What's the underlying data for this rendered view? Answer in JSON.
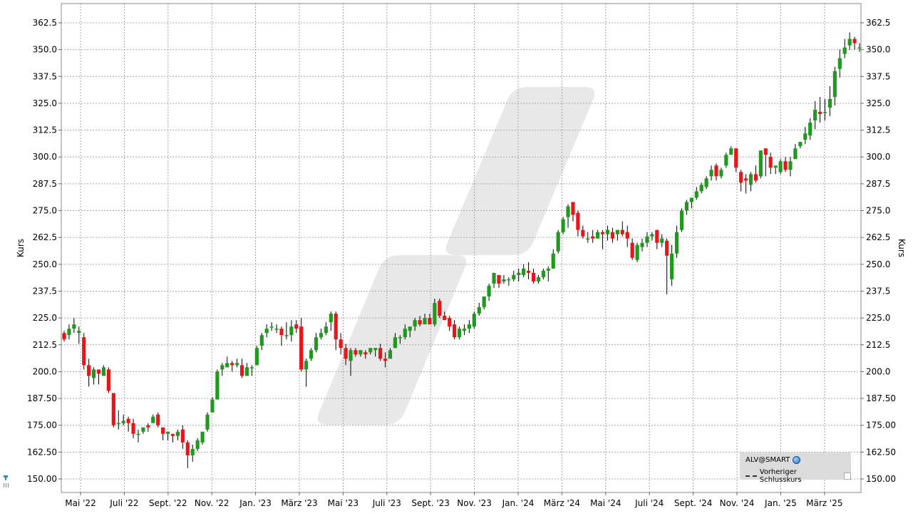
{
  "chart_data": {
    "type": "candlestick",
    "ylabel_left": "Kurs",
    "ylabel_right": "Kurs",
    "ylim": [
      145.0,
      368.0
    ],
    "y_ticks_left": [
      "362.5",
      "350.0",
      "337.5",
      "325.0",
      "312.5",
      "300.0",
      "287.5",
      "275.0",
      "262.5",
      "250.0",
      "237.5",
      "225.0",
      "212.5",
      "200.0",
      "187.50",
      "175.00",
      "162.50",
      "150.00"
    ],
    "y_ticks_right": [
      "362.5",
      "350.0",
      "337.5",
      "325.0",
      "312.5",
      "300.0",
      "287.5",
      "275.0",
      "262.5",
      "250.0",
      "237.5",
      "225.0",
      "212.5",
      "200.0",
      "187.50",
      "175.00",
      "162.50",
      "150.00"
    ],
    "x_ticks": [
      "Mai '22",
      "Juli '22",
      "Sept. '22",
      "Nov. '22",
      "Jan. '23",
      "März '23",
      "Mai '23",
      "Juli '23",
      "Sept. '23",
      "Nov. '23",
      "Jan. '24",
      "März '24",
      "Mai '24",
      "Juli '24",
      "Sept. '24",
      "Nov. '24",
      "Jan. '25",
      "März '25"
    ],
    "grid": true,
    "candles": [
      [
        218,
        215,
        219,
        214
      ],
      [
        217,
        220,
        222,
        215
      ],
      [
        220,
        222,
        225,
        218
      ],
      [
        218,
        219,
        221,
        213
      ],
      [
        216,
        203,
        218,
        201
      ],
      [
        203,
        198,
        206,
        193
      ],
      [
        197,
        201,
        202,
        194
      ],
      [
        201,
        199,
        201,
        194
      ],
      [
        198,
        202,
        203,
        198
      ],
      [
        201,
        191,
        202,
        190
      ],
      [
        190,
        175,
        190,
        174
      ],
      [
        176,
        176,
        182,
        173
      ],
      [
        176,
        177,
        180,
        175
      ],
      [
        178,
        176,
        179,
        172
      ],
      [
        176,
        171,
        178,
        169
      ],
      [
        171,
        171,
        173,
        167
      ],
      [
        172,
        174,
        174,
        171
      ],
      [
        175,
        174,
        176,
        172
      ],
      [
        176,
        179,
        180,
        176
      ],
      [
        180,
        175,
        181,
        174
      ],
      [
        174,
        171,
        174,
        168
      ],
      [
        171,
        172,
        172,
        168
      ],
      [
        171,
        170,
        171,
        167
      ],
      [
        170,
        172,
        173,
        168
      ],
      [
        173,
        167,
        175,
        164
      ],
      [
        167,
        161,
        168,
        155
      ],
      [
        161,
        164,
        166,
        158
      ],
      [
        164,
        168,
        169,
        163
      ],
      [
        167,
        172,
        172,
        166
      ],
      [
        173,
        180,
        181,
        172
      ],
      [
        181,
        187,
        188,
        181
      ],
      [
        187,
        200,
        201,
        187
      ],
      [
        201,
        203,
        204,
        198
      ],
      [
        202,
        204,
        207,
        202
      ],
      [
        204,
        203,
        205,
        200
      ],
      [
        203,
        204,
        206,
        202
      ],
      [
        203,
        198,
        206,
        197
      ],
      [
        198,
        202,
        204,
        198
      ],
      [
        202,
        202,
        203,
        198
      ],
      [
        203,
        211,
        212,
        203
      ],
      [
        212,
        217,
        218,
        210
      ],
      [
        218,
        220,
        222,
        216
      ],
      [
        221,
        221,
        223,
        219
      ],
      [
        220,
        220,
        222,
        218
      ],
      [
        220,
        217,
        221,
        212
      ],
      [
        217,
        217,
        223,
        215
      ],
      [
        217,
        221,
        224,
        214
      ],
      [
        222,
        220,
        224,
        218
      ],
      [
        221,
        201,
        225,
        200
      ],
      [
        201,
        205,
        206,
        193
      ],
      [
        206,
        210,
        211,
        205
      ],
      [
        210,
        216,
        218,
        209
      ],
      [
        216,
        218,
        220,
        215
      ],
      [
        218,
        221,
        223,
        217
      ],
      [
        223,
        227,
        228,
        219
      ],
      [
        227,
        215,
        228,
        210
      ],
      [
        215,
        211,
        218,
        208
      ],
      [
        211,
        206,
        213,
        203
      ],
      [
        205,
        210,
        211,
        198
      ],
      [
        210,
        208,
        211,
        207
      ],
      [
        208,
        210,
        210,
        207
      ],
      [
        209,
        208,
        210,
        206
      ],
      [
        209,
        211,
        211,
        208
      ],
      [
        210,
        211,
        211,
        207
      ],
      [
        211,
        206,
        213,
        205
      ],
      [
        206,
        205,
        209,
        202
      ],
      [
        206,
        210,
        211,
        206
      ],
      [
        211,
        216,
        218,
        211
      ],
      [
        216,
        216,
        217,
        213
      ],
      [
        216,
        220,
        222,
        215
      ],
      [
        219,
        221,
        221,
        216
      ],
      [
        221,
        224,
        225,
        219
      ],
      [
        224,
        222,
        226,
        221
      ],
      [
        222,
        225,
        227,
        223
      ],
      [
        225,
        222,
        227,
        222
      ],
      [
        222,
        232,
        234,
        221
      ],
      [
        233,
        226,
        234,
        225
      ],
      [
        226,
        224,
        228,
        224
      ],
      [
        225,
        221,
        226,
        219
      ],
      [
        222,
        216,
        224,
        215
      ],
      [
        216,
        220,
        221,
        215
      ],
      [
        219,
        220,
        222,
        217
      ],
      [
        220,
        222,
        224,
        218
      ],
      [
        221,
        227,
        228,
        220
      ],
      [
        227,
        230,
        232,
        226
      ],
      [
        230,
        235,
        235,
        229
      ],
      [
        235,
        240,
        241,
        233
      ],
      [
        241,
        246,
        246,
        239
      ],
      [
        245,
        241,
        244,
        239
      ],
      [
        242,
        243,
        245,
        241
      ],
      [
        243,
        243,
        244,
        240
      ],
      [
        243,
        245,
        247,
        242
      ],
      [
        245,
        246,
        248,
        242
      ],
      [
        245,
        248,
        250,
        244
      ],
      [
        247,
        246,
        251,
        243
      ],
      [
        246,
        242,
        248,
        241
      ],
      [
        242,
        244,
        245,
        241
      ],
      [
        244,
        247,
        248,
        243
      ],
      [
        247,
        248,
        249,
        242
      ],
      [
        248,
        255,
        257,
        248
      ],
      [
        256,
        265,
        266,
        255
      ],
      [
        265,
        271,
        272,
        264
      ],
      [
        272,
        277,
        278,
        267
      ],
      [
        279,
        273,
        279,
        270
      ],
      [
        274,
        266,
        275,
        263
      ],
      [
        266,
        263,
        268,
        262
      ],
      [
        262,
        262,
        265,
        260
      ],
      [
        263,
        262,
        266,
        260
      ],
      [
        262,
        265,
        266,
        262
      ],
      [
        265,
        264,
        266,
        257
      ],
      [
        264,
        266,
        268,
        261
      ],
      [
        265,
        262,
        267,
        260
      ],
      [
        264,
        266,
        266,
        261
      ],
      [
        266,
        264,
        270,
        263
      ],
      [
        265,
        262,
        268,
        258
      ],
      [
        260,
        253,
        262,
        252
      ],
      [
        252,
        259,
        260,
        251
      ],
      [
        258,
        260,
        262,
        256
      ],
      [
        260,
        263,
        265,
        258
      ],
      [
        263,
        264,
        265,
        261
      ],
      [
        266,
        260,
        266,
        257
      ],
      [
        260,
        262,
        264,
        258
      ],
      [
        261,
        254,
        262,
        236
      ],
      [
        243,
        255,
        259,
        240
      ],
      [
        255,
        265,
        268,
        253
      ],
      [
        266,
        275,
        276,
        265
      ],
      [
        275,
        279,
        280,
        273
      ],
      [
        279,
        281,
        281,
        276
      ],
      [
        281,
        284,
        286,
        280
      ],
      [
        284,
        287,
        288,
        283
      ],
      [
        286,
        290,
        291,
        285
      ],
      [
        291,
        294,
        296,
        289
      ],
      [
        296,
        291,
        297,
        289
      ],
      [
        291,
        294,
        295,
        290
      ],
      [
        296,
        301,
        302,
        295
      ],
      [
        301,
        304,
        305,
        302
      ],
      [
        304,
        295,
        304,
        293
      ],
      [
        293,
        288,
        294,
        284
      ],
      [
        290,
        289,
        292,
        283
      ],
      [
        287,
        292,
        293,
        284
      ],
      [
        292,
        289,
        296,
        288
      ],
      [
        291,
        303,
        303,
        290
      ],
      [
        304,
        301,
        304,
        291
      ],
      [
        300,
        295,
        302,
        292
      ],
      [
        295,
        296,
        296,
        292
      ],
      [
        293,
        298,
        299,
        292
      ],
      [
        298,
        294,
        300,
        293
      ],
      [
        294,
        298,
        300,
        291
      ],
      [
        299,
        304,
        306,
        299
      ],
      [
        305,
        307,
        307,
        304
      ],
      [
        308,
        311,
        314,
        306
      ],
      [
        310,
        316,
        318,
        308
      ],
      [
        317,
        322,
        326,
        313
      ],
      [
        321,
        320,
        328,
        316
      ],
      [
        321,
        321,
        327,
        317
      ],
      [
        323,
        327,
        333,
        319
      ],
      [
        328,
        340,
        342,
        324
      ],
      [
        341,
        346,
        350,
        337
      ],
      [
        348,
        351,
        355,
        346
      ],
      [
        352,
        355,
        358,
        350
      ],
      [
        355,
        353,
        356,
        350
      ],
      [
        351,
        351,
        353,
        349
      ]
    ]
  },
  "legend": {
    "symbol": "ALV@SMART",
    "previous_close": "Vorheriger Schlusskurs"
  },
  "colors": {
    "up": "#1f9a1f",
    "down": "#e8151a",
    "grid": "#a6a6a6",
    "watermark": "#e8e8e8"
  },
  "icons": [
    "globe-icon",
    "dashed-line-icon",
    "checkbox-icon",
    "side-toolbar-icon"
  ]
}
